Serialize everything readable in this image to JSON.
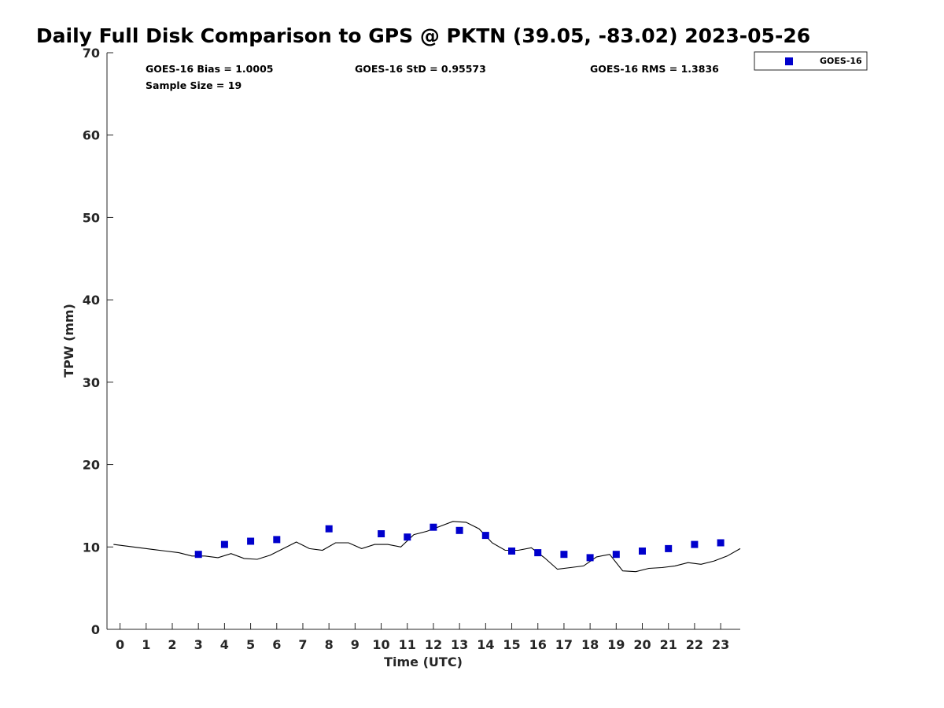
{
  "chart_data": {
    "type": "scatter",
    "title": "Daily Full Disk Comparison to GPS @ PKTN (39.05, -83.02) 2023-05-26",
    "xlabel": "Time (UTC)",
    "ylabel": "TPW (mm)",
    "xlim": [
      -0.5,
      23.75
    ],
    "ylim": [
      0,
      70
    ],
    "x_ticks": [
      0,
      1,
      2,
      3,
      4,
      5,
      6,
      7,
      8,
      9,
      10,
      11,
      12,
      13,
      14,
      15,
      16,
      17,
      18,
      19,
      20,
      21,
      22,
      23
    ],
    "y_ticks": [
      0,
      10,
      20,
      30,
      40,
      50,
      60,
      70
    ],
    "grid": false,
    "legend_position": "top-right, outside plot",
    "stats": [
      {
        "text": "GOES-16 Bias = 1.0005"
      },
      {
        "text": "GOES-16 StD = 0.95573"
      },
      {
        "text": "GOES-16 RMS = 1.3836"
      },
      {
        "text": "Sample Size = 19"
      }
    ],
    "series": [
      {
        "name": "GOES-16",
        "kind": "scatter",
        "marker": "square",
        "color": "#0000cc",
        "x": [
          3,
          4,
          5,
          6,
          8,
          10,
          11,
          12,
          13,
          14,
          15,
          16,
          17,
          18,
          19,
          20,
          21,
          22,
          23
        ],
        "y": [
          9.1,
          10.3,
          10.7,
          10.9,
          12.2,
          11.6,
          11.2,
          12.4,
          12.0,
          11.4,
          9.5,
          9.3,
          9.1,
          8.7,
          9.1,
          9.5,
          9.8,
          10.3,
          10.5
        ]
      },
      {
        "kind": "line",
        "color": "#000000",
        "x": [
          -0.25,
          0.25,
          0.75,
          1.25,
          1.75,
          2.25,
          2.75,
          3.25,
          3.75,
          4.25,
          4.75,
          5.25,
          5.75,
          6.25,
          6.75,
          7.25,
          7.75,
          8.25,
          8.75,
          9.25,
          9.75,
          10.25,
          10.75,
          11.25,
          11.75,
          12.25,
          12.75,
          13.25,
          13.75,
          14.25,
          14.75,
          15.25,
          15.75,
          16.25,
          16.75,
          17.25,
          17.75,
          18.25,
          18.75,
          19.25,
          19.75,
          20.25,
          20.75,
          21.25,
          21.75,
          22.25,
          22.75,
          23.25,
          23.75
        ],
        "y": [
          10.3,
          10.1,
          9.9,
          9.7,
          9.5,
          9.3,
          8.9,
          8.9,
          8.7,
          9.2,
          8.6,
          8.5,
          9.0,
          9.8,
          10.6,
          9.8,
          9.6,
          10.5,
          10.5,
          9.8,
          10.3,
          10.3,
          10.0,
          11.5,
          11.9,
          12.5,
          13.1,
          13.0,
          12.2,
          10.5,
          9.6,
          9.6,
          9.9,
          8.7,
          7.3,
          7.5,
          7.7,
          8.8,
          9.1,
          7.1,
          7.0,
          7.4,
          7.5,
          7.7,
          8.1,
          7.9,
          8.3,
          8.9,
          9.8
        ]
      }
    ]
  }
}
